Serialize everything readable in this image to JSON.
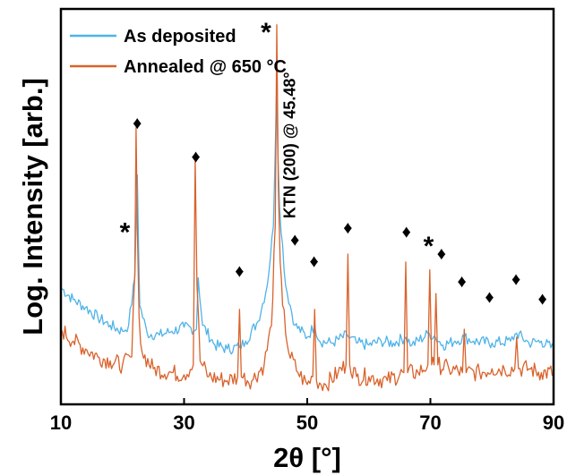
{
  "chart_data": {
    "type": "line",
    "xlabel": "2θ [°]",
    "ylabel": "Log. Intensity [arb.]",
    "xlim": [
      10,
      90
    ],
    "ylim": [
      0,
      1
    ],
    "xticks": [
      10,
      30,
      50,
      70,
      90
    ],
    "grid": false,
    "legend_position": "top-left",
    "y_tick_labels_shown": false,
    "series": [
      {
        "name": "As deposited",
        "color": "#4fb3e8",
        "x": [
          10,
          12,
          14,
          16,
          18,
          20,
          21,
          22.0,
          22.4,
          22.8,
          24,
          26,
          28,
          30,
          32.0,
          32.3,
          33,
          35,
          37,
          39.0,
          40,
          42,
          43.5,
          44.5,
          45.0,
          45.5,
          46.5,
          48,
          50,
          51.2,
          52,
          54,
          56.5,
          58,
          60,
          62,
          64,
          66.0,
          67,
          69.8,
          70.8,
          72,
          74,
          75.5,
          77,
          80,
          83,
          84.0,
          86,
          88,
          90
        ],
        "y": [
          0.295,
          0.265,
          0.245,
          0.22,
          0.2,
          0.185,
          0.2,
          0.32,
          0.58,
          0.25,
          0.18,
          0.175,
          0.185,
          0.195,
          0.19,
          0.32,
          0.2,
          0.15,
          0.14,
          0.145,
          0.16,
          0.21,
          0.3,
          0.45,
          0.78,
          0.5,
          0.3,
          0.2,
          0.17,
          0.2,
          0.16,
          0.155,
          0.175,
          0.155,
          0.15,
          0.16,
          0.155,
          0.17,
          0.15,
          0.18,
          0.17,
          0.15,
          0.16,
          0.17,
          0.16,
          0.155,
          0.16,
          0.18,
          0.155,
          0.16,
          0.14
        ]
      },
      {
        "name": "Annealed @ 650 °C",
        "color": "#d9622b",
        "x": [
          10,
          12,
          14,
          16,
          18,
          20,
          21.5,
          22.0,
          22.2,
          22.4,
          22.7,
          23.2,
          25,
          28,
          30,
          31.5,
          31.8,
          32.1,
          32.6,
          34,
          37,
          38.7,
          39.0,
          39.3,
          41,
          43,
          44.2,
          44.8,
          45.05,
          45.3,
          45.6,
          46.0,
          47,
          48.5,
          50,
          50.9,
          51.2,
          51.5,
          53,
          55,
          56.3,
          56.6,
          56.9,
          58,
          60,
          63,
          65.7,
          66.0,
          66.3,
          68,
          69.6,
          69.9,
          70.2,
          70.6,
          70.9,
          71.2,
          73,
          75.2,
          75.5,
          75.8,
          78,
          80,
          82,
          83.7,
          84.0,
          84.3,
          86,
          88,
          90
        ],
        "y": [
          0.19,
          0.16,
          0.14,
          0.12,
          0.11,
          0.1,
          0.12,
          0.33,
          0.7,
          0.45,
          0.22,
          0.13,
          0.09,
          0.08,
          0.075,
          0.1,
          0.62,
          0.3,
          0.11,
          0.07,
          0.06,
          0.07,
          0.24,
          0.07,
          0.06,
          0.1,
          0.2,
          0.45,
          0.96,
          0.55,
          0.36,
          0.25,
          0.13,
          0.08,
          0.05,
          0.07,
          0.24,
          0.06,
          0.05,
          0.08,
          0.1,
          0.38,
          0.1,
          0.07,
          0.07,
          0.06,
          0.08,
          0.36,
          0.08,
          0.08,
          0.1,
          0.34,
          0.1,
          0.1,
          0.28,
          0.1,
          0.09,
          0.08,
          0.19,
          0.08,
          0.08,
          0.09,
          0.09,
          0.09,
          0.17,
          0.09,
          0.09,
          0.08,
          0.08
        ]
      }
    ],
    "annotations": [
      {
        "text": "♦",
        "x": 22.4,
        "y": 0.715
      },
      {
        "text": "♦",
        "x": 31.9,
        "y": 0.63
      },
      {
        "text": "♦",
        "x": 39.0,
        "y": 0.34
      },
      {
        "text": "♦",
        "x": 48.0,
        "y": 0.42
      },
      {
        "text": "♦",
        "x": 51.1,
        "y": 0.365
      },
      {
        "text": "♦",
        "x": 56.6,
        "y": 0.45
      },
      {
        "text": "♦",
        "x": 66.1,
        "y": 0.44
      },
      {
        "text": "♦",
        "x": 71.8,
        "y": 0.385
      },
      {
        "text": "♦",
        "x": 75.1,
        "y": 0.315
      },
      {
        "text": "♦",
        "x": 79.6,
        "y": 0.275
      },
      {
        "text": "♦",
        "x": 83.9,
        "y": 0.32
      },
      {
        "text": "♦",
        "x": 88.2,
        "y": 0.27
      },
      {
        "text": "*",
        "x": 20.4,
        "y": 0.445
      },
      {
        "text": "*",
        "x": 43.3,
        "y": 0.95
      },
      {
        "text": "*",
        "x": 69.7,
        "y": 0.41
      },
      {
        "text": "KTN (200) @ 45.48°",
        "x": 48.0,
        "y": 0.47,
        "rotate": -90
      }
    ]
  }
}
